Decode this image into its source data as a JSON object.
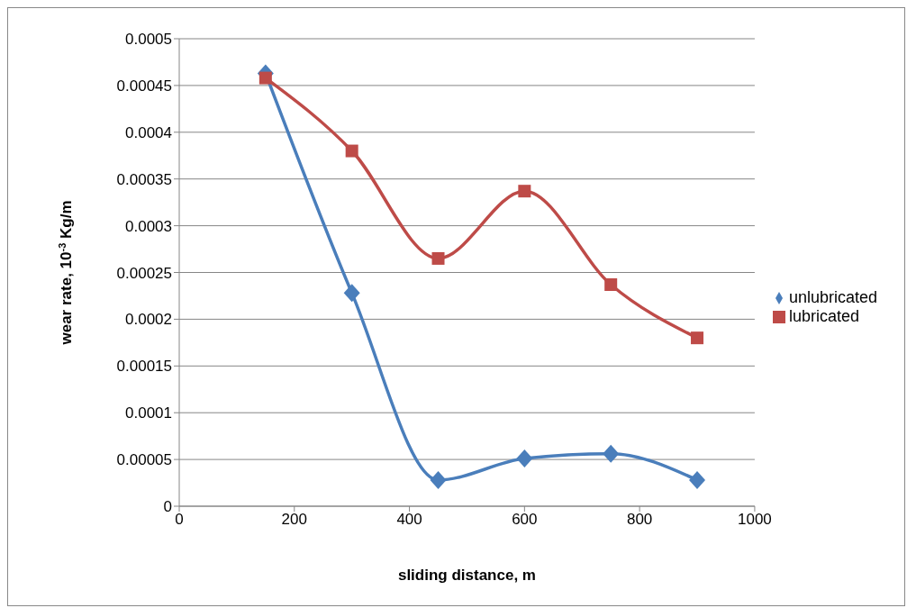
{
  "chart_data": {
    "type": "line",
    "xlabel": "sliding distance, m",
    "ylabel": "wear rate, 10$^{-3}$ Kg/m",
    "xlim": [
      0,
      1000
    ],
    "xticks": [
      0,
      200,
      400,
      600,
      800,
      1000
    ],
    "ylim": [
      0,
      0.0005
    ],
    "yticks": [
      0,
      {
        "value": 5e-05,
        "label": "0.00005"
      },
      0.0001,
      0.00015,
      0.0002,
      0.00025,
      0.0003,
      0.00035,
      0.0004,
      0.00045,
      0.0005
    ],
    "grid": "y",
    "legend": "right",
    "line_style": "solid",
    "x": [
      150,
      300,
      450,
      600,
      750,
      900
    ],
    "series": [
      {
        "name": "unlubricated",
        "color": "#4a7ebb",
        "marker": "diamond",
        "values": [
          0.000463,
          0.000228,
          2.8e-05,
          5.1e-05,
          5.6e-05,
          2.8e-05
        ]
      },
      {
        "name": "lubricated",
        "color": "#be4b48",
        "marker": "square",
        "values": [
          0.000458,
          0.00038,
          0.000265,
          0.000337,
          0.000237,
          0.00018
        ]
      }
    ]
  }
}
